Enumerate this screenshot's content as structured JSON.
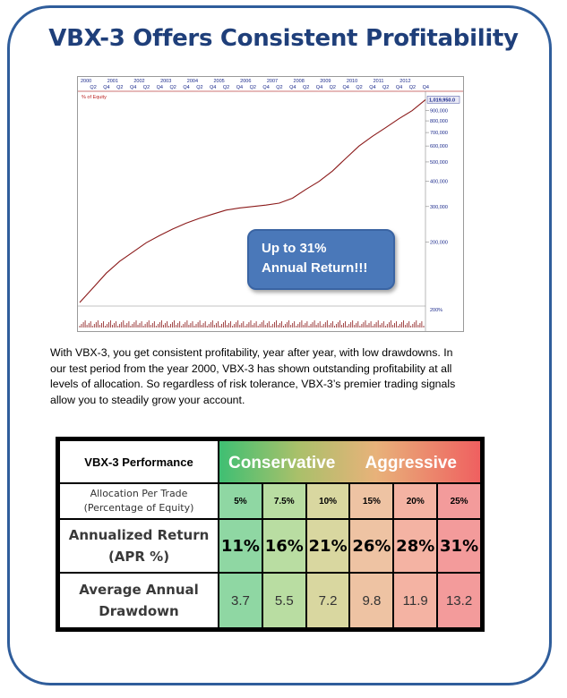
{
  "title": "VBX-3 Offers Consistent Profitability",
  "chart_data": {
    "type": "line",
    "y_scale": "log",
    "ylabel": "% of Equity",
    "last_value_label": "1,019,950.0",
    "years": [
      "2000",
      "2001",
      "2002",
      "2003",
      "2004",
      "2005",
      "2006",
      "2007",
      "2008",
      "2009",
      "2010",
      "2011",
      "2012"
    ],
    "quarters": [
      "Q2",
      "Q4",
      "Q2",
      "Q4",
      "Q2",
      "Q4",
      "Q2",
      "Q4",
      "Q2",
      "Q4",
      "Q2",
      "Q4",
      "Q2",
      "Q4",
      "Q2",
      "Q4",
      "Q2",
      "Q4",
      "Q2",
      "Q4",
      "Q2",
      "Q4",
      "Q2",
      "Q4",
      "Q2",
      "Q4"
    ],
    "y_ticks": [
      "900,000",
      "800,000",
      "700,000",
      "600,000",
      "500,000",
      "400,000",
      "300,000",
      "200,000"
    ],
    "y_tick_values": [
      900000,
      800000,
      700000,
      600000,
      500000,
      400000,
      300000,
      200000
    ],
    "lower_panel_label": "200%",
    "x": [
      2000.0,
      2000.5,
      2001.0,
      2001.5,
      2002.0,
      2002.5,
      2003.0,
      2003.5,
      2004.0,
      2004.5,
      2005.0,
      2005.5,
      2006.0,
      2006.5,
      2007.0,
      2007.5,
      2008.0,
      2008.5,
      2009.0,
      2009.5,
      2010.0,
      2010.5,
      2011.0,
      2011.5,
      2012.0,
      2012.5,
      2013.0
    ],
    "values": [
      100000,
      118000,
      140000,
      160000,
      178000,
      198000,
      215000,
      232000,
      248000,
      262000,
      275000,
      288000,
      295000,
      300000,
      305000,
      312000,
      330000,
      365000,
      400000,
      450000,
      520000,
      600000,
      670000,
      740000,
      820000,
      900000,
      1019950
    ],
    "ylim": [
      100000,
      1100000
    ],
    "xlim": [
      2000,
      2013
    ]
  },
  "callout": {
    "line1": "Up to 31%",
    "line2": "Annual  Return!!!"
  },
  "paragraph": {
    "lines": [
      "With VBX-3, you get consistent profitability, year after year, with low drawdowns. In",
      "our test period from the year 2000, VBX-3 has shown outstanding profitability at all",
      "levels of allocation. So regardless of risk tolerance, VBX-3’s premier trading signals",
      "allow you  to steadily grow your account."
    ]
  },
  "table": {
    "header_left": "VBX-3 Performance",
    "header_conservative": "Conservative",
    "header_aggressive": "Aggressive",
    "alloc_label_1": "Allocation Per Trade",
    "alloc_label_2": "(Percentage of Equity)",
    "alloc": [
      "5%",
      "7.5%",
      "10%",
      "15%",
      "20%",
      "25%"
    ],
    "apr_label_1": "Annualized Return",
    "apr_label_2": "(APR %)",
    "apr": [
      "11%",
      "16%",
      "21%",
      "26%",
      "28%",
      "31%"
    ],
    "dd_label_1": "Average Annual",
    "dd_label_2": "Drawdown",
    "dd": [
      "3.7",
      "5.5",
      "7.2",
      "9.8",
      "11.9",
      "13.2"
    ]
  }
}
